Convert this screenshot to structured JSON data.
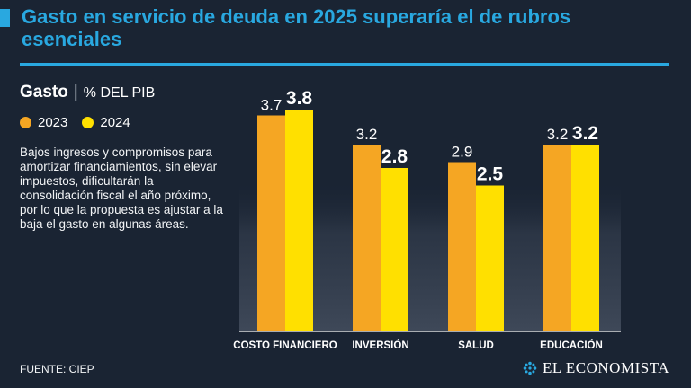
{
  "header": {
    "title": "Gasto en servicio de deuda en 2025 superaría el de rubros esenciales"
  },
  "subtitle": {
    "label": "Gasto",
    "separator": "|",
    "units": "% DEL PIB"
  },
  "legend": [
    {
      "label": "2023",
      "color": "#f5a623"
    },
    {
      "label": "2024",
      "color": "#ffe000"
    }
  ],
  "description": "Bajos ingresos y compromisos para amortizar financiamientos, sin elevar impuestos, dificultarán la consolidación fiscal el año próximo, por lo que la propuesta es ajustar a la baja el gasto en algunas áreas.",
  "source": "FUENTE: CIEP",
  "brand": {
    "name": "EL ECONOMISTA",
    "icon": "el-economista-logo-icon"
  },
  "colors": {
    "accent": "#29a8e0",
    "background": "#1a2433"
  },
  "chart_data": {
    "type": "bar",
    "categories": [
      "COSTO FINANCIERO",
      "INVERSIÓN",
      "SALUD",
      "EDUCACIÓN"
    ],
    "series": [
      {
        "name": "2023",
        "values": [
          3.7,
          3.2,
          2.9,
          3.2
        ],
        "labels": [
          "3.7",
          "3.2",
          "2.9",
          "3.2"
        ],
        "color": "#f5a623"
      },
      {
        "name": "2024",
        "values": [
          3.8,
          2.8,
          2.5,
          3.2
        ],
        "labels": [
          "3.8",
          "2.8",
          "2.5",
          "3.2"
        ],
        "color": "#ffe000"
      }
    ],
    "ylim": [
      0,
      3.8
    ],
    "title": "Gasto",
    "ylabel": "% DEL PIB",
    "grid": false
  }
}
